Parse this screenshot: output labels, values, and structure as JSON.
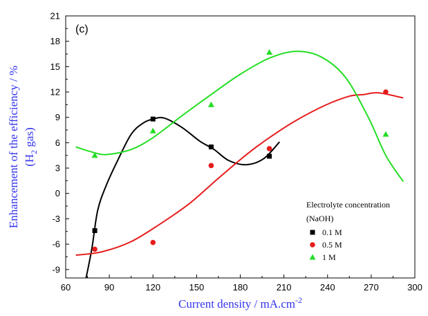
{
  "chart_data": {
    "type": "scatter",
    "panel_label": "(c)",
    "xlabel_main": "Current density / mA.cm",
    "xlabel_sup": "-2",
    "ylabel_line1": "Enhancement of the efficiency / %",
    "ylabel_line2_pre": "(H",
    "ylabel_line2_sub": "2",
    "ylabel_line2_post": " gas)",
    "xlim": [
      60,
      300
    ],
    "ylim": [
      -10,
      21
    ],
    "xticks": [
      60,
      90,
      120,
      150,
      180,
      210,
      240,
      270,
      300
    ],
    "yticks": [
      -9,
      -6,
      -3,
      0,
      3,
      6,
      9,
      12,
      15,
      18,
      21
    ],
    "legend": {
      "title_line1": "Electrolyte concentration",
      "title_line2": "(NaOH)",
      "placement": "bottom-right"
    },
    "series": [
      {
        "name": "0.1 M",
        "color": "#000000",
        "marker": "square",
        "points": [
          [
            80,
            -4.4
          ],
          [
            120,
            8.8
          ],
          [
            160,
            5.5
          ],
          [
            200,
            4.4
          ]
        ],
        "fit": [
          [
            74,
            -10
          ],
          [
            78,
            -6.5
          ],
          [
            82,
            -2
          ],
          [
            88,
            1
          ],
          [
            96,
            4
          ],
          [
            105,
            7
          ],
          [
            113,
            8.3
          ],
          [
            120,
            8.8
          ],
          [
            128,
            8.9
          ],
          [
            140,
            7.8
          ],
          [
            152,
            6.2
          ],
          [
            162,
            5.2
          ],
          [
            172,
            3.9
          ],
          [
            184,
            3.4
          ],
          [
            196,
            4.1
          ],
          [
            207,
            6.1
          ]
        ]
      },
      {
        "name": "0.5 M",
        "color": "#e61c1c",
        "marker": "circle",
        "points": [
          [
            80,
            -6.6
          ],
          [
            120,
            -5.8
          ],
          [
            160,
            3.3
          ],
          [
            200,
            5.3
          ],
          [
            280,
            12
          ]
        ],
        "fit": [
          [
            67,
            -7.3
          ],
          [
            85,
            -6.9
          ],
          [
            105,
            -5.7
          ],
          [
            125,
            -3.6
          ],
          [
            145,
            -1.2
          ],
          [
            165,
            1.8
          ],
          [
            185,
            4.7
          ],
          [
            200,
            6.6
          ],
          [
            218,
            8.6
          ],
          [
            238,
            10.4
          ],
          [
            255,
            11.5
          ],
          [
            265,
            11.7
          ],
          [
            275,
            11.9
          ],
          [
            292,
            11.3
          ]
        ]
      },
      {
        "name": "1 M",
        "color": "#22dd22",
        "marker": "triangle",
        "points": [
          [
            80,
            4.5
          ],
          [
            120,
            7.4
          ],
          [
            160,
            10.5
          ],
          [
            200,
            16.7
          ],
          [
            280,
            7
          ]
        ],
        "fit": [
          [
            67,
            5.5
          ],
          [
            78,
            4.9
          ],
          [
            88,
            4.6
          ],
          [
            105,
            5.2
          ],
          [
            120,
            6.6
          ],
          [
            140,
            9.2
          ],
          [
            160,
            11.7
          ],
          [
            180,
            14.1
          ],
          [
            200,
            16
          ],
          [
            218,
            16.8
          ],
          [
            235,
            16.2
          ],
          [
            252,
            13.8
          ],
          [
            268,
            9
          ],
          [
            280,
            4.5
          ],
          [
            292,
            1.4
          ]
        ]
      }
    ]
  }
}
